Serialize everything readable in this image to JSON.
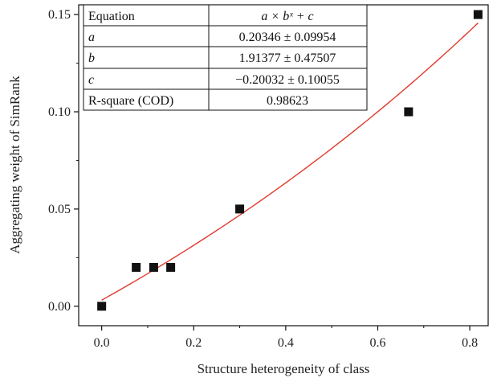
{
  "chart_data": {
    "type": "scatter",
    "xlabel": "Structure heterogeneity of class",
    "ylabel": "Aggregating weight of SimRank",
    "xlim": [
      -0.05,
      0.84
    ],
    "ylim": [
      -0.01,
      0.155
    ],
    "x_ticks": [
      0.0,
      0.2,
      0.4,
      0.6,
      0.8
    ],
    "x_tick_labels": [
      "0.0",
      "0.2",
      "0.4",
      "0.6",
      "0.8"
    ],
    "y_ticks": [
      0.0,
      0.05,
      0.1,
      0.15
    ],
    "y_tick_labels": [
      "0.00",
      "0.05",
      "0.10",
      "0.15"
    ],
    "grid": false,
    "series": [
      {
        "marker": "square",
        "color": "#111111",
        "points": [
          {
            "x": 0.0,
            "y": 0.0
          },
          {
            "x": 0.075,
            "y": 0.02
          },
          {
            "x": 0.113,
            "y": 0.02
          },
          {
            "x": 0.15,
            "y": 0.02
          },
          {
            "x": 0.3,
            "y": 0.05
          },
          {
            "x": 0.667,
            "y": 0.1
          },
          {
            "x": 0.818,
            "y": 0.15
          }
        ]
      },
      {
        "kind": "fit-line",
        "color": "#e03a2e",
        "a": 0.20346,
        "b": 1.91377,
        "c": -0.20032,
        "x_range": [
          0.0,
          0.818
        ]
      }
    ],
    "fit_table": {
      "rows": [
        {
          "label": "Equation",
          "value": "a × bˣ + c"
        },
        {
          "label": "a",
          "value": "0.20346 ± 0.09954"
        },
        {
          "label": "b",
          "value": "1.91377 ± 0.47507"
        },
        {
          "label": "c",
          "value": "−0.20032 ± 0.10055"
        },
        {
          "label": "R-square (COD)",
          "value": "0.98623"
        }
      ]
    }
  }
}
